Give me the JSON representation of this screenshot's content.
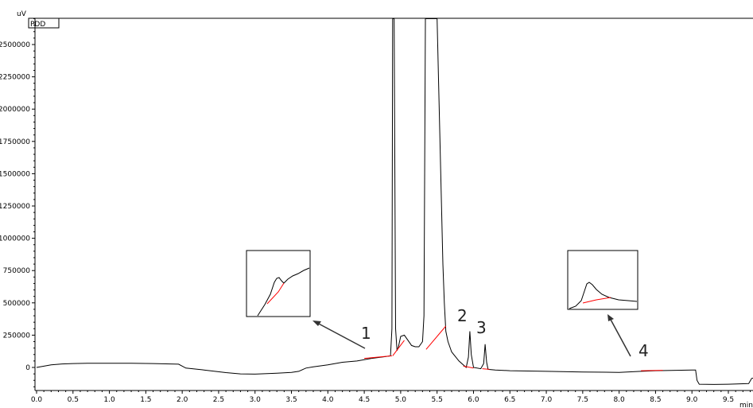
{
  "chart_data": {
    "type": "line",
    "ylabel": "uV",
    "xlabel": "min",
    "detector": "PDD",
    "xlim": [
      0.0,
      9.96
    ],
    "ylim": [
      -175000,
      2700000
    ],
    "xticks": [
      "0.0",
      "0.5",
      "1.0",
      "1.5",
      "2.0",
      "2.5",
      "3.0",
      "3.5",
      "4.0",
      "4.5",
      "5.0",
      "5.5",
      "6.0",
      "6.5",
      "7.0",
      "7.5",
      "8.0",
      "8.5",
      "9.0",
      "9.5"
    ],
    "yticks": [
      "2500000",
      "2250000",
      "2000000",
      "1750000",
      "1500000",
      "1250000",
      "1000000",
      "750000",
      "500000",
      "250000",
      "0"
    ],
    "series": [
      {
        "x": [
          0.0,
          0.1,
          0.2,
          0.35,
          0.5,
          0.7,
          1.0,
          1.3,
          1.6,
          1.95,
          2.05,
          2.3,
          2.6,
          2.8,
          3.0,
          3.3,
          3.5,
          3.6,
          3.7,
          3.8,
          4.0,
          4.2,
          4.4,
          4.6,
          4.8,
          4.86,
          4.88,
          4.89,
          4.91,
          4.93,
          4.95,
          4.97,
          5.0,
          5.05,
          5.1,
          5.15,
          5.2,
          5.25,
          5.3,
          5.32,
          5.34,
          5.36,
          5.4,
          5.5,
          5.55,
          5.58,
          5.6,
          5.62,
          5.65,
          5.7,
          5.8,
          5.9,
          5.93,
          5.95,
          5.97,
          6.0,
          6.1,
          6.14,
          6.16,
          6.18,
          6.2,
          6.3,
          6.5,
          7.0,
          7.5,
          8.0,
          8.3,
          8.5,
          9.0,
          9.05,
          9.07,
          9.1,
          9.3,
          9.5,
          9.78,
          9.82,
          9.87,
          9.96
        ],
        "y": [
          0,
          10000,
          20000,
          27000,
          30000,
          32000,
          32000,
          32000,
          30000,
          25000,
          -5000,
          -20000,
          -40000,
          -50000,
          -52000,
          -45000,
          -38000,
          -30000,
          -5000,
          5000,
          20000,
          40000,
          50000,
          70000,
          85000,
          90000,
          300000,
          2700000,
          2700000,
          300000,
          130000,
          160000,
          240000,
          250000,
          210000,
          170000,
          160000,
          160000,
          200000,
          400000,
          2700000,
          2700000,
          2700000,
          2700000,
          1500000,
          800000,
          500000,
          280000,
          200000,
          120000,
          50000,
          0,
          80000,
          280000,
          100000,
          0,
          -10000,
          30000,
          180000,
          40000,
          -15000,
          -20000,
          -25000,
          -30000,
          -35000,
          -38000,
          -30000,
          -25000,
          -20000,
          -20000,
          -100000,
          -130000,
          -132000,
          -130000,
          -125000,
          -85000,
          -80000,
          -85000
        ]
      }
    ],
    "baselines": [
      {
        "x": [
          4.5,
          4.88
        ],
        "y": [
          70000,
          90000
        ]
      },
      {
        "x": [
          4.89,
          5.05
        ],
        "y": [
          90000,
          210000
        ]
      },
      {
        "x": [
          5.35,
          5.62
        ],
        "y": [
          140000,
          320000
        ]
      },
      {
        "x": [
          5.86,
          6.0
        ],
        "y": [
          10000,
          -5000
        ]
      },
      {
        "x": [
          6.12,
          6.22
        ],
        "y": [
          -10000,
          -15000
        ]
      },
      {
        "x": [
          8.3,
          8.6
        ],
        "y": [
          -25000,
          -22000
        ]
      }
    ],
    "peaks": [
      {
        "label": "1",
        "x": 4.6
      },
      {
        "label": "2",
        "x": 5.95
      },
      {
        "label": "3",
        "x": 6.15
      },
      {
        "label": "4",
        "x": 8.4
      }
    ]
  },
  "style": {
    "trace_color": "#000000",
    "baseline_color": "#ff0000",
    "axis_color": "#000000"
  }
}
